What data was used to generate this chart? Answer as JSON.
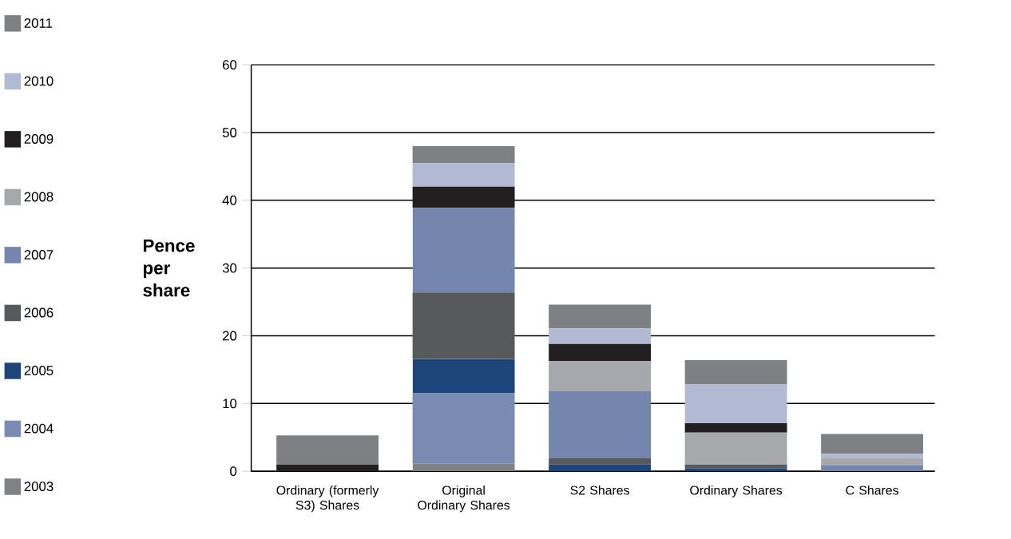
{
  "chart_data": {
    "type": "bar",
    "stacked": true,
    "ylabel": "Pence per share",
    "categories": [
      "Ordinary (formerly S3) Shares",
      "Original Ordinary Shares",
      "S2 Shares",
      "Ordinary Shares",
      "C Shares"
    ],
    "series": [
      {
        "name": "2003",
        "color": "#808184",
        "values": [
          0,
          1.1,
          0,
          0,
          0
        ]
      },
      {
        "name": "2004",
        "color": "#7a8bb3",
        "values": [
          0,
          10.4,
          0,
          0,
          0
        ]
      },
      {
        "name": "2005",
        "color": "#1c4679",
        "values": [
          0,
          5.1,
          1.0,
          0.4,
          0
        ]
      },
      {
        "name": "2006",
        "color": "#58595b",
        "values": [
          0,
          9.8,
          0.9,
          0.6,
          0
        ]
      },
      {
        "name": "2007",
        "color": "#7486ad",
        "values": [
          0,
          12.5,
          9.9,
          0,
          0.9
        ]
      },
      {
        "name": "2008",
        "color": "#a7a8ab",
        "values": [
          0,
          0,
          4.5,
          4.7,
          1.0
        ]
      },
      {
        "name": "2009",
        "color": "#231f20",
        "values": [
          1.0,
          3.1,
          2.5,
          1.4,
          0
        ]
      },
      {
        "name": "2010",
        "color": "#b1b9d3",
        "values": [
          0,
          3.5,
          2.3,
          5.7,
          0.7
        ]
      },
      {
        "name": "2011",
        "color": "#7f8084",
        "values": [
          4.3,
          2.5,
          3.5,
          3.6,
          2.9
        ]
      }
    ],
    "ylim": [
      0,
      60
    ],
    "yticks": [
      0,
      10,
      20,
      30,
      40,
      50,
      60
    ],
    "grid": "y",
    "legend": "left"
  }
}
